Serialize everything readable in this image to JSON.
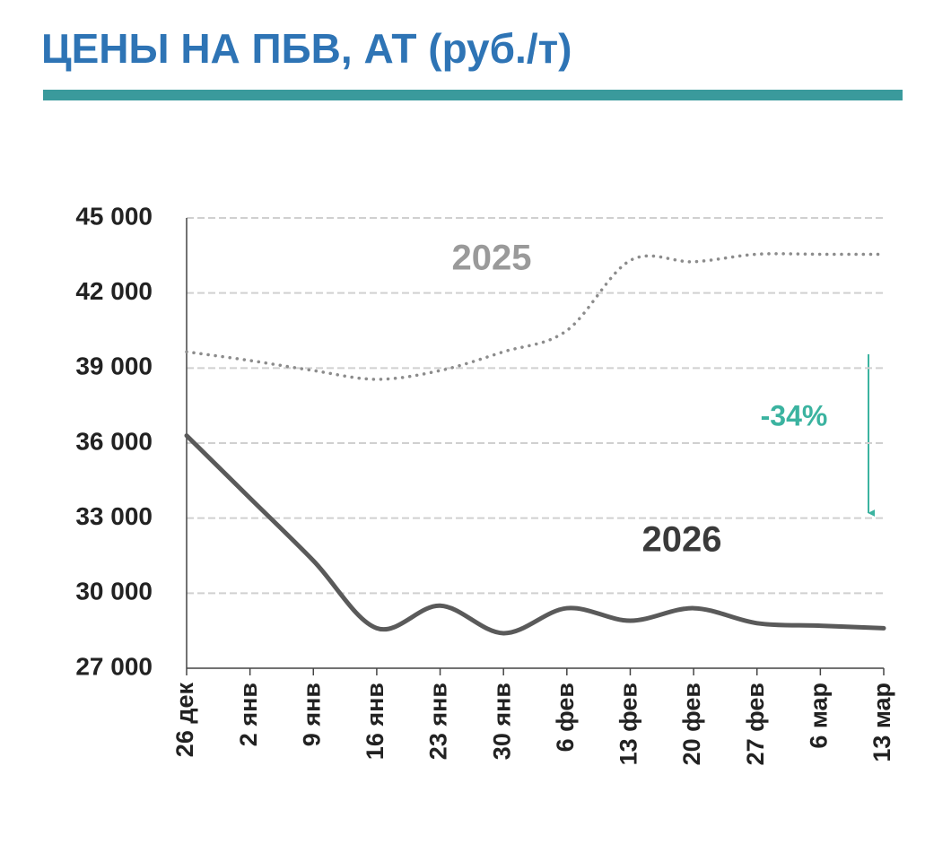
{
  "chart_data": {
    "type": "line",
    "title": "ЦЕНЫ НА ПБВ, АТ (руб./т)",
    "categories": [
      "26 дек",
      "2 янв",
      "9 янв",
      "16 янв",
      "23 янв",
      "30 янв",
      "6 фев",
      "13 фев",
      "20 фев",
      "27 фев",
      "6 мар",
      "13 мар"
    ],
    "series": [
      {
        "name": "2025",
        "color": "#8c8c8c",
        "style": "dotted",
        "values": [
          39650,
          39300,
          38900,
          38550,
          38900,
          39650,
          40500,
          43300,
          43250,
          43550,
          43550,
          43550
        ]
      },
      {
        "name": "2026",
        "color": "#5a5a5a",
        "style": "solid",
        "values": [
          36300,
          33800,
          31300,
          28600,
          29500,
          28400,
          29400,
          28900,
          29400,
          28800,
          28700,
          28600
        ]
      }
    ],
    "ylim": [
      27000,
      45000
    ],
    "yticks": [
      {
        "value": 27000,
        "label": "27 000"
      },
      {
        "value": 30000,
        "label": "30 000"
      },
      {
        "value": 33000,
        "label": "33 000"
      },
      {
        "value": 36000,
        "label": "36 000"
      },
      {
        "value": 39000,
        "label": "39 000"
      },
      {
        "value": 42000,
        "label": "42 000"
      },
      {
        "value": 45000,
        "label": "45 000"
      }
    ],
    "grid": true,
    "annotations": [
      {
        "text": "2025",
        "color": "#9a9a9a"
      },
      {
        "text": "2026",
        "color": "#3a3a3a"
      },
      {
        "text": "-34%",
        "color": "#3bb3a0"
      }
    ]
  }
}
